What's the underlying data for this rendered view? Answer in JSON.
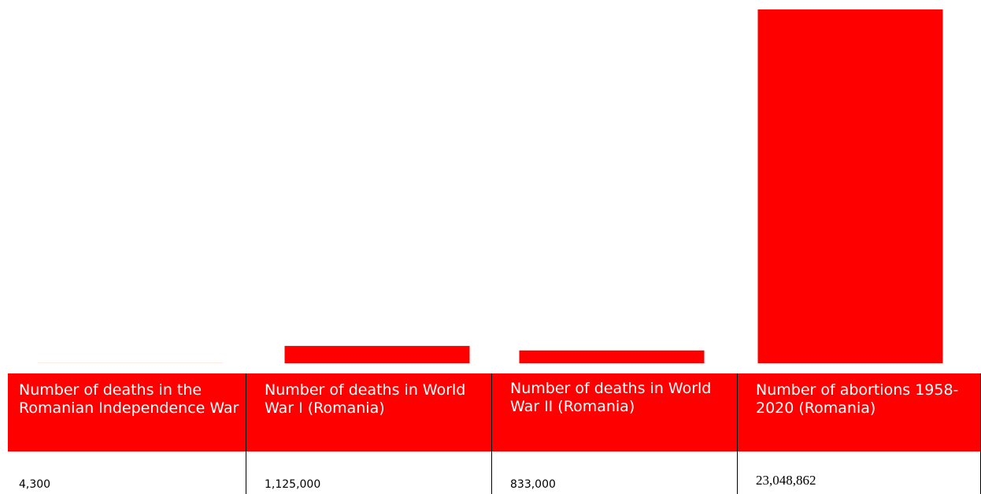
{
  "chart_data": {
    "type": "bar",
    "colors": {
      "bar": "#ff0000",
      "header_bg": "#ff0000",
      "header_text": "#ffffff"
    },
    "categories": [
      "Number of deaths in the Romanian Independence War",
      "Number of deaths in World War I (Romania)",
      "Number of deaths in World War II (Romania)",
      "Number of abortions 1958-2020 (Romania)"
    ],
    "values": [
      4300,
      1125000,
      833000,
      23048862
    ],
    "value_labels": [
      "4,300",
      "1,125,000",
      "833,000",
      "23,048,862"
    ],
    "ylim": [
      0,
      23048862
    ],
    "grid": false,
    "legend": "none"
  }
}
